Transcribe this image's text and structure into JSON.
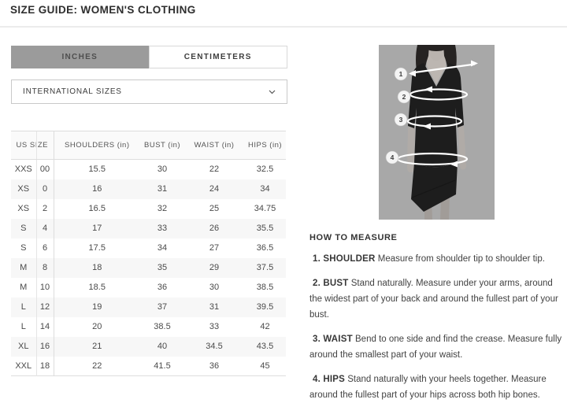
{
  "page": {
    "title": "SIZE GUIDE: WOMEN'S CLOTHING"
  },
  "tabs": [
    {
      "label": "INCHES",
      "active": true
    },
    {
      "label": "CENTIMETERS",
      "active": false
    }
  ],
  "dropdown": {
    "value": "INTERNATIONAL SIZES",
    "icon": "chevron-down-icon"
  },
  "size_table": {
    "unit": "in",
    "headers": {
      "us_size": "US SIZE",
      "shoulders": "SHOULDERS (in)",
      "bust": "BUST (in)",
      "waist": "WAIST (in)",
      "hips": "HIPS (in)"
    },
    "rows": [
      {
        "size": "XXS",
        "us": "00",
        "shoulders": "15.5",
        "bust": "30",
        "waist": "22",
        "hips": "32.5"
      },
      {
        "size": "XS",
        "us": "0",
        "shoulders": "16",
        "bust": "31",
        "waist": "24",
        "hips": "34"
      },
      {
        "size": "XS",
        "us": "2",
        "shoulders": "16.5",
        "bust": "32",
        "waist": "25",
        "hips": "34.75"
      },
      {
        "size": "S",
        "us": "4",
        "shoulders": "17",
        "bust": "33",
        "waist": "26",
        "hips": "35.5"
      },
      {
        "size": "S",
        "us": "6",
        "shoulders": "17.5",
        "bust": "34",
        "waist": "27",
        "hips": "36.5"
      },
      {
        "size": "M",
        "us": "8",
        "shoulders": "18",
        "bust": "35",
        "waist": "29",
        "hips": "37.5"
      },
      {
        "size": "M",
        "us": "10",
        "shoulders": "18.5",
        "bust": "36",
        "waist": "30",
        "hips": "38.5"
      },
      {
        "size": "L",
        "us": "12",
        "shoulders": "19",
        "bust": "37",
        "waist": "31",
        "hips": "39.5"
      },
      {
        "size": "L",
        "us": "14",
        "shoulders": "20",
        "bust": "38.5",
        "waist": "33",
        "hips": "42"
      },
      {
        "size": "XL",
        "us": "16",
        "shoulders": "21",
        "bust": "40",
        "waist": "34.5",
        "hips": "43.5"
      },
      {
        "size": "XXL",
        "us": "18",
        "shoulders": "22",
        "bust": "41.5",
        "waist": "36",
        "hips": "45"
      }
    ]
  },
  "figure": {
    "markers": [
      "1",
      "2",
      "3",
      "4"
    ]
  },
  "how_to_measure": {
    "heading": "HOW TO MEASURE",
    "items": [
      {
        "label": "1. SHOULDER",
        "text": "Measure from shoulder tip to shoulder tip."
      },
      {
        "label": "2. BUST",
        "text": "Stand naturally. Measure under your arms, around the widest part of your back and around the fullest part of your bust."
      },
      {
        "label": "3. WAIST",
        "text": "Bend to one side and find the crease. Measure fully around the smallest part of your waist."
      },
      {
        "label": "4. HIPS",
        "text": "Stand naturally with your heels together. Measure around the fullest part of your hips across both hip bones."
      }
    ]
  },
  "colors": {
    "tab_active_bg": "#9b9b9b",
    "row_stripe": "#f7f7f7",
    "table_border": "#dddddd",
    "photo_bg": "#a8a8a8",
    "dress": "#1d1d1d",
    "marker_stroke": "#ffffff"
  }
}
